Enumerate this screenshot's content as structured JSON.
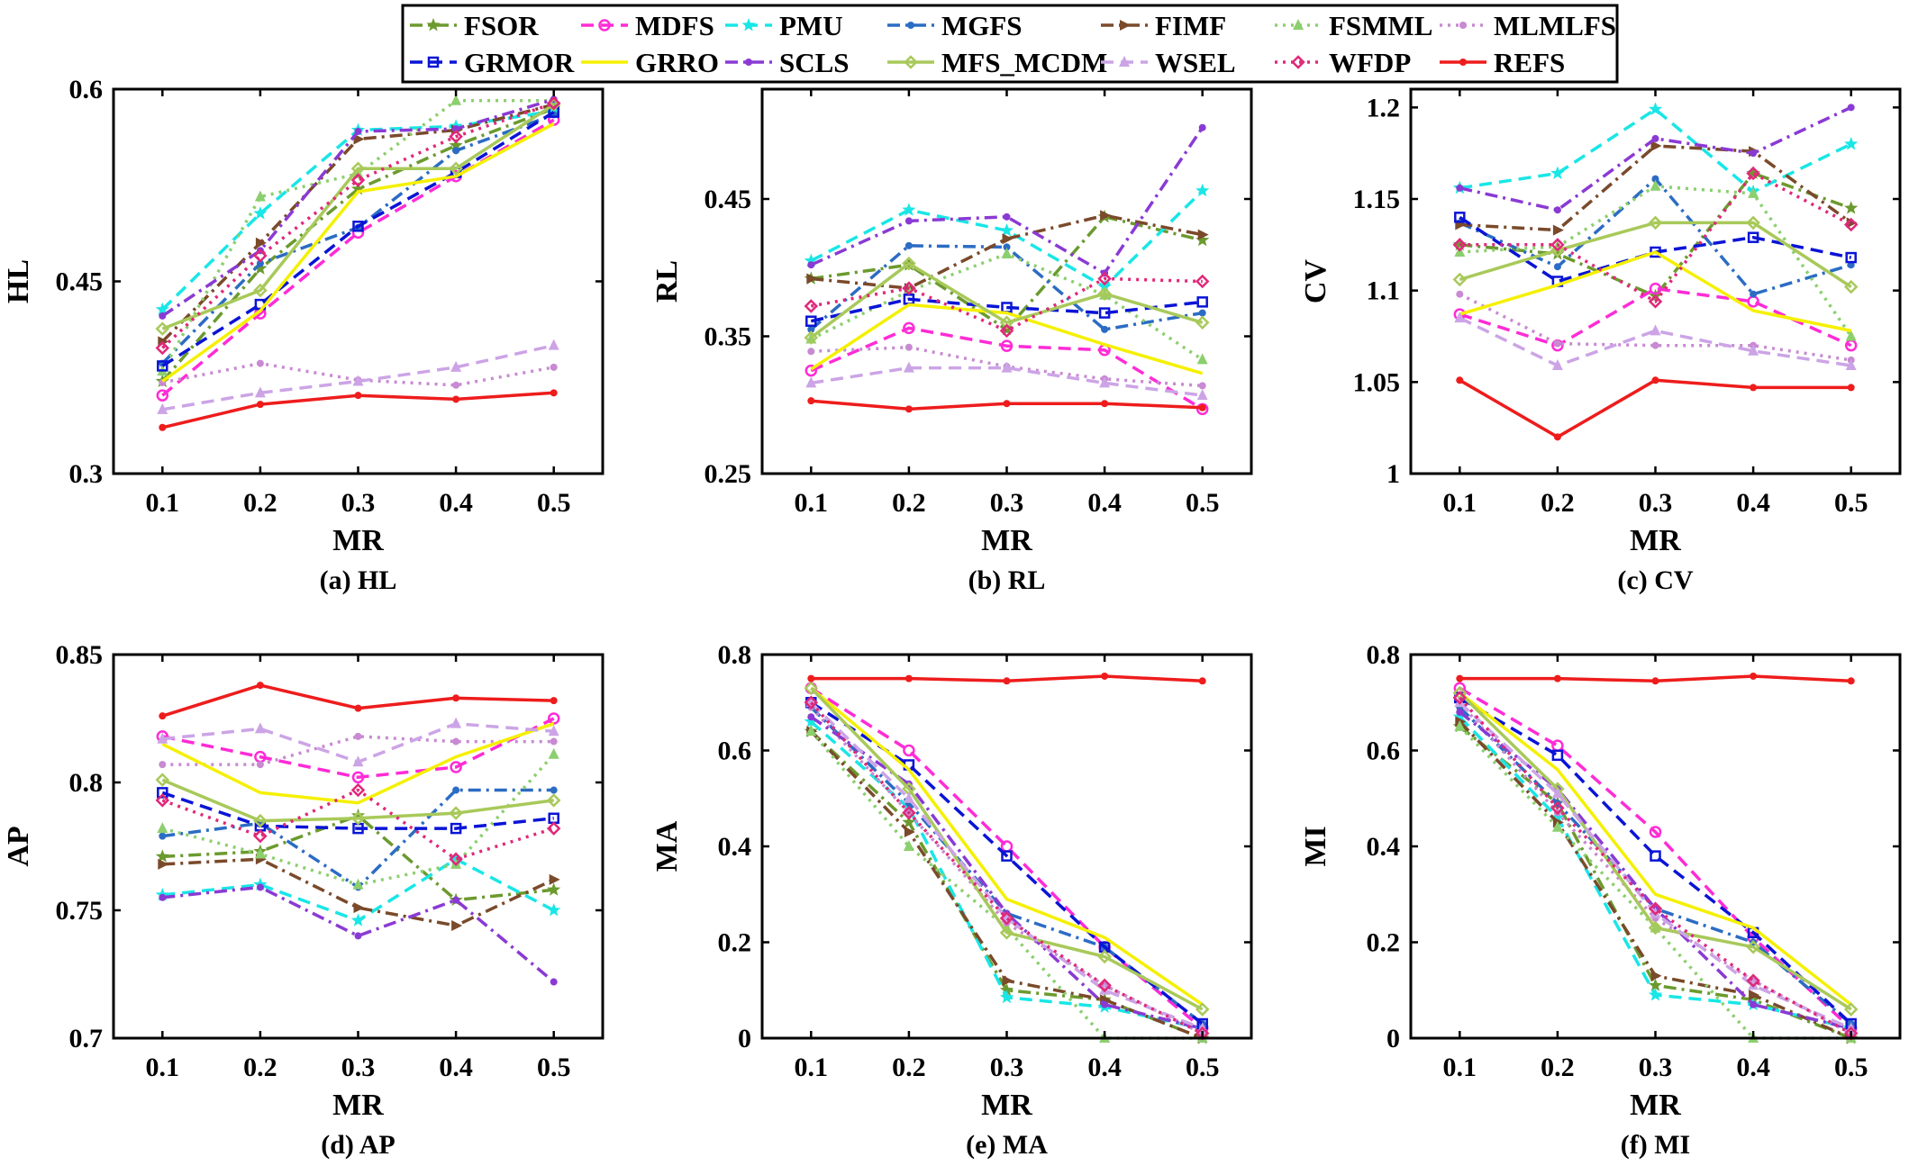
{
  "figure": {
    "legend": [
      {
        "name": "FSOR",
        "color": "#6b9a2e",
        "dash": "dashdot",
        "marker": "star"
      },
      {
        "name": "MDFS",
        "color": "#ff2bd6",
        "dash": "dash",
        "marker": "circle"
      },
      {
        "name": "PMU",
        "color": "#19e6e6",
        "dash": "dash",
        "marker": "star"
      },
      {
        "name": "MGFS",
        "color": "#2b6cc4",
        "dash": "dashdot",
        "marker": "dot"
      },
      {
        "name": "FIMF",
        "color": "#7a4a2a",
        "dash": "dashdot",
        "marker": "triangle-right"
      },
      {
        "name": "FSMML",
        "color": "#8ccf6e",
        "dash": "dot",
        "marker": "triangle"
      },
      {
        "name": "MLMLFS",
        "color": "#c88ad2",
        "dash": "dot",
        "marker": "dot"
      },
      {
        "name": "GRMOR",
        "color": "#0a14d6",
        "dash": "dash",
        "marker": "square"
      },
      {
        "name": "GRRO",
        "color": "#f5f000",
        "dash": "solid",
        "marker": "none"
      },
      {
        "name": "SCLS",
        "color": "#8a3ad4",
        "dash": "dashdot",
        "marker": "dot"
      },
      {
        "name": "MFS_MCDM",
        "color": "#a8c95a",
        "dash": "solid",
        "marker": "diamond-left"
      },
      {
        "name": "WSEL",
        "color": "#cca4e6",
        "dash": "dash",
        "marker": "triangle"
      },
      {
        "name": "WFDP",
        "color": "#e0287a",
        "dash": "dot",
        "marker": "diamond"
      },
      {
        "name": "REFS",
        "color": "#ee1c1c",
        "dash": "solid",
        "marker": "dot"
      }
    ]
  },
  "chart_data": [
    {
      "type": "line",
      "id": "HL",
      "caption": "(a) HL",
      "xlabel": "MR",
      "ylabel": "HL",
      "x": [
        0.1,
        0.2,
        0.3,
        0.4,
        0.5
      ],
      "ylim": [
        0.3,
        0.6
      ],
      "yticks": [
        "0.3",
        "0.45",
        "0.6"
      ],
      "ytickvals": [
        0.3,
        0.45,
        0.6
      ],
      "series": [
        {
          "name": "FSOR",
          "values": [
            0.372,
            0.46,
            0.522,
            0.556,
            0.585
          ]
        },
        {
          "name": "MDFS",
          "values": [
            0.361,
            0.425,
            0.488,
            0.532,
            0.576
          ]
        },
        {
          "name": "PMU",
          "values": [
            0.428,
            0.503,
            0.568,
            0.571,
            0.583
          ]
        },
        {
          "name": "MGFS",
          "values": [
            0.386,
            0.464,
            0.492,
            0.552,
            0.58
          ]
        },
        {
          "name": "FIMF",
          "values": [
            0.403,
            0.48,
            0.561,
            0.568,
            0.588
          ]
        },
        {
          "name": "FSMML",
          "values": [
            0.38,
            0.516,
            0.534,
            0.591,
            0.591
          ]
        },
        {
          "name": "MLMLFS",
          "values": [
            0.371,
            0.386,
            0.373,
            0.369,
            0.383
          ]
        },
        {
          "name": "GRMOR",
          "values": [
            0.384,
            0.432,
            0.493,
            0.535,
            0.582
          ]
        },
        {
          "name": "GRRO",
          "values": [
            0.372,
            0.427,
            0.52,
            0.532,
            0.573
          ]
        },
        {
          "name": "SCLS",
          "values": [
            0.423,
            0.474,
            0.567,
            0.569,
            0.592
          ]
        },
        {
          "name": "MFS_MCDM",
          "values": [
            0.413,
            0.443,
            0.538,
            0.538,
            0.588
          ]
        },
        {
          "name": "WSEL",
          "values": [
            0.35,
            0.363,
            0.372,
            0.383,
            0.4
          ]
        },
        {
          "name": "WFDP",
          "values": [
            0.398,
            0.47,
            0.529,
            0.563,
            0.589
          ]
        },
        {
          "name": "REFS",
          "values": [
            0.336,
            0.354,
            0.361,
            0.358,
            0.363
          ]
        }
      ]
    },
    {
      "type": "line",
      "id": "RL",
      "caption": "(b) RL",
      "xlabel": "MR",
      "ylabel": "RL",
      "x": [
        0.1,
        0.2,
        0.3,
        0.4,
        0.5
      ],
      "ylim": [
        0.25,
        0.53
      ],
      "yticks": [
        "0.25",
        "0.35",
        "0.45"
      ],
      "ytickvals": [
        0.25,
        0.35,
        0.45
      ],
      "series": [
        {
          "name": "FSOR",
          "values": [
            0.392,
            0.402,
            0.355,
            0.437,
            0.42
          ]
        },
        {
          "name": "MDFS",
          "values": [
            0.325,
            0.356,
            0.343,
            0.34,
            0.297
          ]
        },
        {
          "name": "PMU",
          "values": [
            0.405,
            0.442,
            0.427,
            0.386,
            0.456
          ]
        },
        {
          "name": "MGFS",
          "values": [
            0.355,
            0.416,
            0.415,
            0.355,
            0.367
          ]
        },
        {
          "name": "FIMF",
          "values": [
            0.392,
            0.385,
            0.421,
            0.438,
            0.424
          ]
        },
        {
          "name": "FSMML",
          "values": [
            0.348,
            0.383,
            0.41,
            0.38,
            0.333
          ]
        },
        {
          "name": "MLMLFS",
          "values": [
            0.339,
            0.342,
            0.328,
            0.319,
            0.314
          ]
        },
        {
          "name": "GRMOR",
          "values": [
            0.361,
            0.377,
            0.371,
            0.367,
            0.375
          ]
        },
        {
          "name": "GRRO",
          "values": [
            0.326,
            0.373,
            0.367,
            0.344,
            0.323
          ]
        },
        {
          "name": "SCLS",
          "values": [
            0.402,
            0.434,
            0.437,
            0.396,
            0.502
          ]
        },
        {
          "name": "MFS_MCDM",
          "values": [
            0.349,
            0.403,
            0.36,
            0.381,
            0.36
          ]
        },
        {
          "name": "WSEL",
          "values": [
            0.316,
            0.327,
            0.327,
            0.316,
            0.307
          ]
        },
        {
          "name": "WFDP",
          "values": [
            0.372,
            0.385,
            0.354,
            0.392,
            0.39
          ]
        },
        {
          "name": "REFS",
          "values": [
            0.303,
            0.297,
            0.301,
            0.301,
            0.298
          ]
        }
      ]
    },
    {
      "type": "line",
      "id": "CV",
      "caption": "(c) CV",
      "xlabel": "MR",
      "ylabel": "CV",
      "x": [
        0.1,
        0.2,
        0.3,
        0.4,
        0.5
      ],
      "ylim": [
        1.0,
        1.21
      ],
      "yticks": [
        "1",
        "1.05",
        "1.1",
        "1.15",
        "1.2"
      ],
      "ytickvals": [
        1.0,
        1.05,
        1.1,
        1.15,
        1.2
      ],
      "series": [
        {
          "name": "FSOR",
          "values": [
            1.125,
            1.12,
            1.097,
            1.164,
            1.145
          ]
        },
        {
          "name": "MDFS",
          "values": [
            1.087,
            1.07,
            1.101,
            1.094,
            1.07
          ]
        },
        {
          "name": "PMU",
          "values": [
            1.156,
            1.164,
            1.199,
            1.154,
            1.18
          ]
        },
        {
          "name": "MGFS",
          "values": [
            1.137,
            1.113,
            1.161,
            1.098,
            1.114
          ]
        },
        {
          "name": "FIMF",
          "values": [
            1.136,
            1.133,
            1.179,
            1.176,
            1.137
          ]
        },
        {
          "name": "FSMML",
          "values": [
            1.121,
            1.124,
            1.157,
            1.153,
            1.075
          ]
        },
        {
          "name": "MLMLFS",
          "values": [
            1.098,
            1.071,
            1.07,
            1.07,
            1.062
          ]
        },
        {
          "name": "GRMOR",
          "values": [
            1.14,
            1.105,
            1.121,
            1.129,
            1.118
          ]
        },
        {
          "name": "GRRO",
          "values": [
            1.087,
            1.103,
            1.121,
            1.089,
            1.078
          ]
        },
        {
          "name": "SCLS",
          "values": [
            1.156,
            1.144,
            1.183,
            1.175,
            1.2
          ]
        },
        {
          "name": "MFS_MCDM",
          "values": [
            1.106,
            1.122,
            1.137,
            1.137,
            1.102
          ]
        },
        {
          "name": "WSEL",
          "values": [
            1.085,
            1.059,
            1.078,
            1.067,
            1.059
          ]
        },
        {
          "name": "WFDP",
          "values": [
            1.125,
            1.125,
            1.094,
            1.164,
            1.136
          ]
        },
        {
          "name": "REFS",
          "values": [
            1.051,
            1.02,
            1.051,
            1.047,
            1.047
          ]
        }
      ]
    },
    {
      "type": "line",
      "id": "AP",
      "caption": "(d) AP",
      "xlabel": "MR",
      "ylabel": "AP",
      "x": [
        0.1,
        0.2,
        0.3,
        0.4,
        0.5
      ],
      "ylim": [
        0.7,
        0.85
      ],
      "yticks": [
        "0.7",
        "0.75",
        "0.8",
        "0.85"
      ],
      "ytickvals": [
        0.7,
        0.75,
        0.8,
        0.85
      ],
      "series": [
        {
          "name": "FSOR",
          "values": [
            0.771,
            0.773,
            0.787,
            0.754,
            0.758
          ]
        },
        {
          "name": "MDFS",
          "values": [
            0.818,
            0.81,
            0.802,
            0.806,
            0.825
          ]
        },
        {
          "name": "PMU",
          "values": [
            0.756,
            0.76,
            0.746,
            0.77,
            0.75
          ]
        },
        {
          "name": "MGFS",
          "values": [
            0.779,
            0.784,
            0.759,
            0.797,
            0.797
          ]
        },
        {
          "name": "FIMF",
          "values": [
            0.768,
            0.77,
            0.751,
            0.744,
            0.762
          ]
        },
        {
          "name": "FSMML",
          "values": [
            0.782,
            0.772,
            0.76,
            0.768,
            0.811
          ]
        },
        {
          "name": "MLMLFS",
          "values": [
            0.807,
            0.807,
            0.818,
            0.816,
            0.816
          ]
        },
        {
          "name": "GRMOR",
          "values": [
            0.796,
            0.783,
            0.782,
            0.782,
            0.786
          ]
        },
        {
          "name": "GRRO",
          "values": [
            0.815,
            0.796,
            0.792,
            0.81,
            0.823
          ]
        },
        {
          "name": "SCLS",
          "values": [
            0.755,
            0.759,
            0.74,
            0.754,
            0.722
          ]
        },
        {
          "name": "MFS_MCDM",
          "values": [
            0.801,
            0.785,
            0.786,
            0.788,
            0.793
          ]
        },
        {
          "name": "WSEL",
          "values": [
            0.817,
            0.821,
            0.808,
            0.823,
            0.82
          ]
        },
        {
          "name": "WFDP",
          "values": [
            0.793,
            0.779,
            0.797,
            0.77,
            0.782
          ]
        },
        {
          "name": "REFS",
          "values": [
            0.826,
            0.838,
            0.829,
            0.833,
            0.832
          ]
        }
      ]
    },
    {
      "type": "line",
      "id": "MA",
      "caption": "(e) MA",
      "xlabel": "MR",
      "ylabel": "MA",
      "x": [
        0.1,
        0.2,
        0.3,
        0.4,
        0.5
      ],
      "ylim": [
        0,
        0.8
      ],
      "yticks": [
        "0",
        "0.2",
        "0.4",
        "0.6",
        "0.8"
      ],
      "ytickvals": [
        0,
        0.2,
        0.4,
        0.6,
        0.8
      ],
      "series": [
        {
          "name": "FSOR",
          "values": [
            0.64,
            0.45,
            0.1,
            0.08,
            0.0
          ]
        },
        {
          "name": "MDFS",
          "values": [
            0.73,
            0.6,
            0.4,
            0.19,
            0.02
          ]
        },
        {
          "name": "PMU",
          "values": [
            0.66,
            0.48,
            0.085,
            0.065,
            0.02
          ]
        },
        {
          "name": "MGFS",
          "values": [
            0.69,
            0.49,
            0.26,
            0.19,
            0.03
          ]
        },
        {
          "name": "FIMF",
          "values": [
            0.64,
            0.43,
            0.12,
            0.08,
            0.0
          ]
        },
        {
          "name": "FSMML",
          "values": [
            0.64,
            0.4,
            0.23,
            0.0,
            0.0
          ]
        },
        {
          "name": "MLMLFS",
          "values": [
            0.69,
            0.47,
            0.24,
            0.11,
            0.01
          ]
        },
        {
          "name": "GRMOR",
          "values": [
            0.7,
            0.57,
            0.38,
            0.19,
            0.03
          ]
        },
        {
          "name": "GRRO",
          "values": [
            0.73,
            0.56,
            0.29,
            0.21,
            0.07
          ]
        },
        {
          "name": "SCLS",
          "values": [
            0.67,
            0.53,
            0.26,
            0.07,
            0.02
          ]
        },
        {
          "name": "MFS_MCDM",
          "values": [
            0.73,
            0.52,
            0.22,
            0.17,
            0.06
          ]
        },
        {
          "name": "WSEL",
          "values": [
            0.7,
            0.5,
            0.25,
            0.1,
            0.02
          ]
        },
        {
          "name": "WFDP",
          "values": [
            0.7,
            0.47,
            0.25,
            0.11,
            0.01
          ]
        },
        {
          "name": "REFS",
          "values": [
            0.75,
            0.75,
            0.745,
            0.755,
            0.745
          ]
        }
      ]
    },
    {
      "type": "line",
      "id": "MI",
      "caption": "(f) MI",
      "xlabel": "MR",
      "ylabel": "MI",
      "x": [
        0.1,
        0.2,
        0.3,
        0.4,
        0.5
      ],
      "ylim": [
        0,
        0.8
      ],
      "yticks": [
        "0",
        "0.2",
        "0.4",
        "0.6",
        "0.8"
      ],
      "ytickvals": [
        0,
        0.2,
        0.4,
        0.6,
        0.8
      ],
      "series": [
        {
          "name": "FSOR",
          "values": [
            0.65,
            0.49,
            0.11,
            0.08,
            0.0
          ]
        },
        {
          "name": "MDFS",
          "values": [
            0.73,
            0.61,
            0.43,
            0.21,
            0.02
          ]
        },
        {
          "name": "PMU",
          "values": [
            0.67,
            0.46,
            0.09,
            0.07,
            0.02
          ]
        },
        {
          "name": "MGFS",
          "values": [
            0.69,
            0.49,
            0.27,
            0.2,
            0.03
          ]
        },
        {
          "name": "FIMF",
          "values": [
            0.66,
            0.45,
            0.13,
            0.09,
            0.0
          ]
        },
        {
          "name": "FSMML",
          "values": [
            0.65,
            0.44,
            0.23,
            0.0,
            0.0
          ]
        },
        {
          "name": "MLMLFS",
          "values": [
            0.7,
            0.47,
            0.25,
            0.12,
            0.01
          ]
        },
        {
          "name": "GRMOR",
          "values": [
            0.71,
            0.59,
            0.38,
            0.22,
            0.03
          ]
        },
        {
          "name": "GRRO",
          "values": [
            0.72,
            0.56,
            0.3,
            0.23,
            0.07
          ]
        },
        {
          "name": "SCLS",
          "values": [
            0.68,
            0.52,
            0.27,
            0.07,
            0.02
          ]
        },
        {
          "name": "MFS_MCDM",
          "values": [
            0.72,
            0.52,
            0.23,
            0.19,
            0.06
          ]
        },
        {
          "name": "WSEL",
          "values": [
            0.7,
            0.51,
            0.26,
            0.11,
            0.02
          ]
        },
        {
          "name": "WFDP",
          "values": [
            0.71,
            0.48,
            0.27,
            0.12,
            0.01
          ]
        },
        {
          "name": "REFS",
          "values": [
            0.75,
            0.75,
            0.745,
            0.755,
            0.745
          ]
        }
      ]
    }
  ]
}
